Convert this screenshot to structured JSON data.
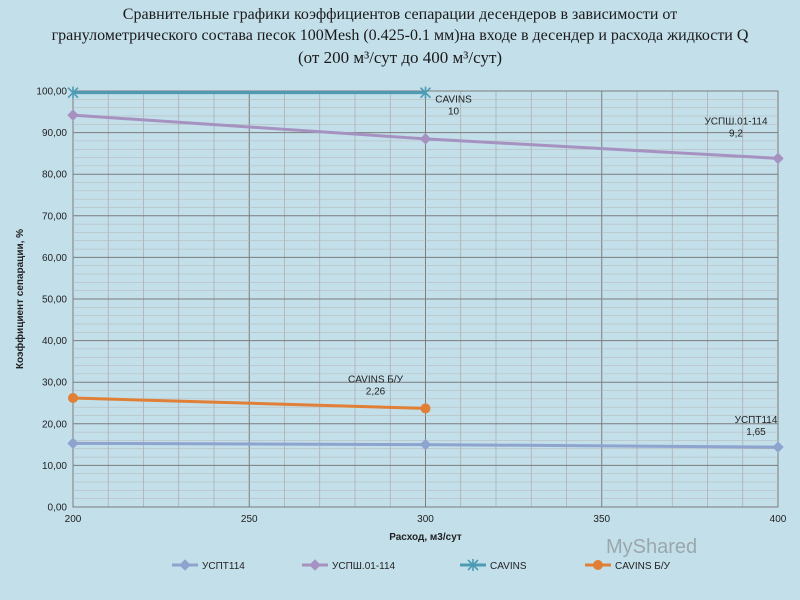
{
  "title": {
    "line1": "Сравнительные графики коэффициентов сепарации десендеров  в зависимости от",
    "line2": "гранулометрического  состава песок 100Mesh (0.425-0.1 мм)на входе в десендер и расхода жидкости Q",
    "line3": "(от 200 м³/сут до 400 м³/сут)"
  },
  "watermark": "MyShared",
  "colors": {
    "uspt114": "#8fa3cf",
    "uspsh": "#a692c0",
    "cavins": "#4e9bb4",
    "cavins_bu": "#e07f35",
    "plot_bg": "#c3dfea",
    "grid": "#9a9a9a"
  },
  "chart_data": {
    "type": "line",
    "title": "",
    "xlabel": "Расход, м3/сут",
    "ylabel": "Коэффициент сепарации, %",
    "xlim": [
      200,
      400
    ],
    "ylim": [
      0,
      100
    ],
    "x_ticks": [
      "200",
      "250",
      "300",
      "350",
      "400"
    ],
    "y_ticks": [
      "0,00",
      "10,00",
      "20,00",
      "30,00",
      "40,00",
      "50,00",
      "60,00",
      "70,00",
      "80,00",
      "90,00",
      "100,00"
    ],
    "grid": true,
    "legend": "bottom",
    "series": [
      {
        "name": "УСПТ114",
        "color": "#8fa3cf",
        "marker": "diamond",
        "points": [
          [
            200,
            15.3
          ],
          [
            300,
            15.0
          ],
          [
            400,
            14.4
          ]
        ],
        "annotation": {
          "name": "УСПТ114",
          "value": "1,65"
        }
      },
      {
        "name": "УСПШ.01-114",
        "color": "#a692c0",
        "marker": "diamond",
        "points": [
          [
            200,
            94.2
          ],
          [
            300,
            88.5
          ],
          [
            400,
            83.8
          ]
        ],
        "annotation": {
          "name": "УСПШ.01-114",
          "value": "9,2"
        }
      },
      {
        "name": "CAVINS",
        "color": "#4e9bb4",
        "marker": "star",
        "points": [
          [
            200,
            99.6
          ],
          [
            300,
            99.6
          ]
        ],
        "annotation": {
          "name": "CAVINS",
          "value": "10"
        }
      },
      {
        "name": "CAVINS Б/У",
        "color": "#e07f35",
        "marker": "circle",
        "points": [
          [
            200,
            26.2
          ],
          [
            300,
            23.7
          ]
        ],
        "annotation": {
          "name": "CAVINS Б/У",
          "value": "2,26"
        }
      }
    ]
  }
}
